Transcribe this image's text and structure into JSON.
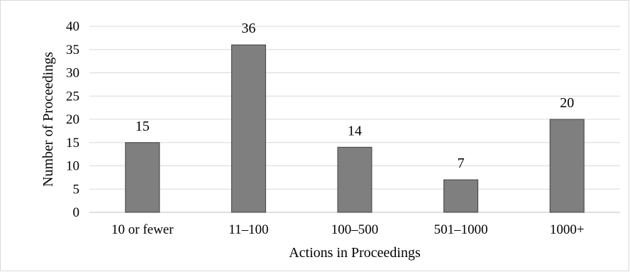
{
  "chart_data": {
    "type": "bar",
    "title": "",
    "xlabel": "Actions in Proceedings",
    "ylabel": "Number of Proceedings",
    "categories": [
      "10 or fewer",
      "11–100",
      "100–500",
      "501–1000",
      "1000+"
    ],
    "values": [
      15,
      36,
      14,
      7,
      20
    ],
    "data_labels": [
      "15",
      "36",
      "14",
      "7",
      "20"
    ],
    "ylim": [
      0,
      40
    ],
    "yticks": [
      0,
      5,
      10,
      15,
      20,
      25,
      30,
      35,
      40
    ],
    "grid": true,
    "legend": "none",
    "bar_color": "#7f7f7f",
    "bar_edge_color": "#404040",
    "grid_color": "#d9d9d9"
  }
}
